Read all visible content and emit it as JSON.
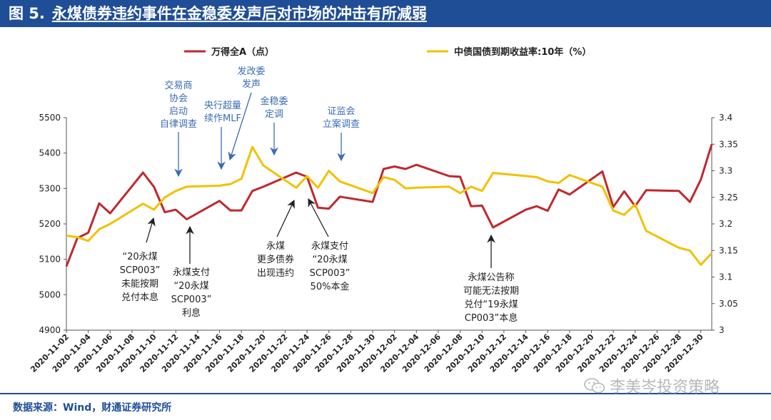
{
  "header": {
    "figure_label": "图 5.",
    "title": "永煤债券违约事件在金稳委发声后对市场的冲击有所减弱"
  },
  "footer": {
    "source": "数据来源：Wind，财通证券研究所",
    "watermark": "李美岑投资策略",
    "watermark_icon": "wechat-icon"
  },
  "colors": {
    "header_bg": "#1f4e96",
    "series_wind_a": "#c0282e",
    "series_yield": "#f2c100",
    "annotation_blue": "#3b6cb4",
    "annotation_black": "#222222"
  },
  "chart_data": {
    "type": "line",
    "dual_axis": true,
    "legend_position": "top",
    "x": [
      "2020-11-02",
      "2020-11-03",
      "2020-11-04",
      "2020-11-05",
      "2020-11-06",
      "2020-11-09",
      "2020-11-10",
      "2020-11-11",
      "2020-11-12",
      "2020-11-13",
      "2020-11-16",
      "2020-11-17",
      "2020-11-18",
      "2020-11-19",
      "2020-11-20",
      "2020-11-23",
      "2020-11-24",
      "2020-11-25",
      "2020-11-26",
      "2020-11-27",
      "2020-11-30",
      "2020-12-01",
      "2020-12-02",
      "2020-12-03",
      "2020-12-04",
      "2020-12-07",
      "2020-12-08",
      "2020-12-09",
      "2020-12-10",
      "2020-12-11",
      "2020-12-14",
      "2020-12-15",
      "2020-12-16",
      "2020-12-17",
      "2020-12-18",
      "2020-12-21",
      "2020-12-22",
      "2020-12-23",
      "2020-12-24",
      "2020-12-25",
      "2020-12-28",
      "2020-12-29",
      "2020-12-30",
      "2020-12-31"
    ],
    "x_tick_labels": [
      "2020-11-02",
      "2020-11-04",
      "2020-11-06",
      "2020-11-08",
      "2020-11-10",
      "2020-11-12",
      "2020-11-14",
      "2020-11-16",
      "2020-11-18",
      "2020-11-20",
      "2020-11-22",
      "2020-11-24",
      "2020-11-26",
      "2020-11-28",
      "2020-11-30",
      "2020-12-02",
      "2020-12-04",
      "2020-12-06",
      "2020-12-08",
      "2020-12-10",
      "2020-12-12",
      "2020-12-14",
      "2020-12-16",
      "2020-12-18",
      "2020-12-20",
      "2020-12-22",
      "2020-12-24",
      "2020-12-26",
      "2020-12-28",
      "2020-12-30"
    ],
    "y_left": {
      "min": 4900,
      "max": 5500,
      "ticks": [
        4900,
        5000,
        5100,
        5200,
        5300,
        5400,
        5500
      ]
    },
    "y_right": {
      "min": 3,
      "max": 3.4,
      "ticks": [
        "3",
        "3.05",
        "3.1",
        "3.15",
        "3.2",
        "3.25",
        "3.3",
        "3.35",
        "3.4"
      ]
    },
    "series": [
      {
        "name": "万得全A（点）",
        "axis": "left",
        "color": "#c0282e",
        "values": [
          5080,
          5160,
          5175,
          5258,
          5230,
          5345,
          5305,
          5233,
          5240,
          5213,
          5265,
          5238,
          5238,
          5293,
          5305,
          5345,
          5333,
          5246,
          5243,
          5277,
          5262,
          5355,
          5362,
          5355,
          5367,
          5335,
          5333,
          5250,
          5252,
          5190,
          5240,
          5250,
          5237,
          5297,
          5283,
          5348,
          5248,
          5292,
          5250,
          5295,
          5293,
          5262,
          5325,
          5425
        ]
      },
      {
        "name": "中债国债到期收益率:10年（%）",
        "axis": "right",
        "color": "#f2c100",
        "values": [
          3.178,
          3.175,
          3.168,
          3.19,
          3.2,
          3.238,
          3.227,
          3.25,
          3.262,
          3.27,
          3.272,
          3.275,
          3.285,
          3.345,
          3.31,
          3.268,
          3.29,
          3.268,
          3.3,
          3.28,
          3.258,
          3.288,
          3.283,
          3.267,
          3.268,
          3.27,
          3.258,
          3.27,
          3.262,
          3.296,
          3.29,
          3.288,
          3.28,
          3.277,
          3.292,
          3.27,
          3.225,
          3.217,
          3.237,
          3.187,
          3.155,
          3.15,
          3.123,
          3.145
        ]
      }
    ],
    "annotations": [
      {
        "id": "jiaoyisuo",
        "lines": [
          "交易商",
          "协会",
          "启动",
          "自律调查"
        ],
        "date": "2020-11-12",
        "color": "blue"
      },
      {
        "id": "fugaiwei",
        "lines": [
          "发改委",
          "发声"
        ],
        "date": "2020-11-18",
        "color": "blue"
      },
      {
        "id": "mlf",
        "lines": [
          "央行超量",
          "续作MLF"
        ],
        "date": "2020-11-16",
        "color": "blue"
      },
      {
        "id": "jinwenwei",
        "lines": [
          "金稳委",
          "定调"
        ],
        "date": "2020-11-21",
        "color": "blue"
      },
      {
        "id": "zhengjianhui",
        "lines": [
          "证监会",
          "立案调查"
        ],
        "date": "2020-11-27",
        "color": "blue"
      },
      {
        "id": "wuneng",
        "lines": [
          "“20永煤",
          "SCP003”",
          "未能按期",
          "兑付本息"
        ],
        "date": "2020-11-10",
        "color": "black"
      },
      {
        "id": "lixi",
        "lines": [
          "永煤支付",
          "“20永煤",
          "SCP003”",
          "利息"
        ],
        "date": "2020-11-13",
        "color": "black"
      },
      {
        "id": "gengduo",
        "lines": [
          "永煤",
          "更多债券",
          "出现违约"
        ],
        "date": "2020-11-23",
        "color": "black"
      },
      {
        "id": "benjin",
        "lines": [
          "永煤支付",
          "“20永煤",
          "SCP003”",
          "50%本金"
        ],
        "date": "2020-11-24",
        "color": "black"
      },
      {
        "id": "gonggao",
        "lines": [
          "永煤公告称",
          "可能无法按期",
          "兑付“19永煤",
          "CP003”本息"
        ],
        "date": "2020-12-10",
        "color": "black"
      }
    ]
  }
}
